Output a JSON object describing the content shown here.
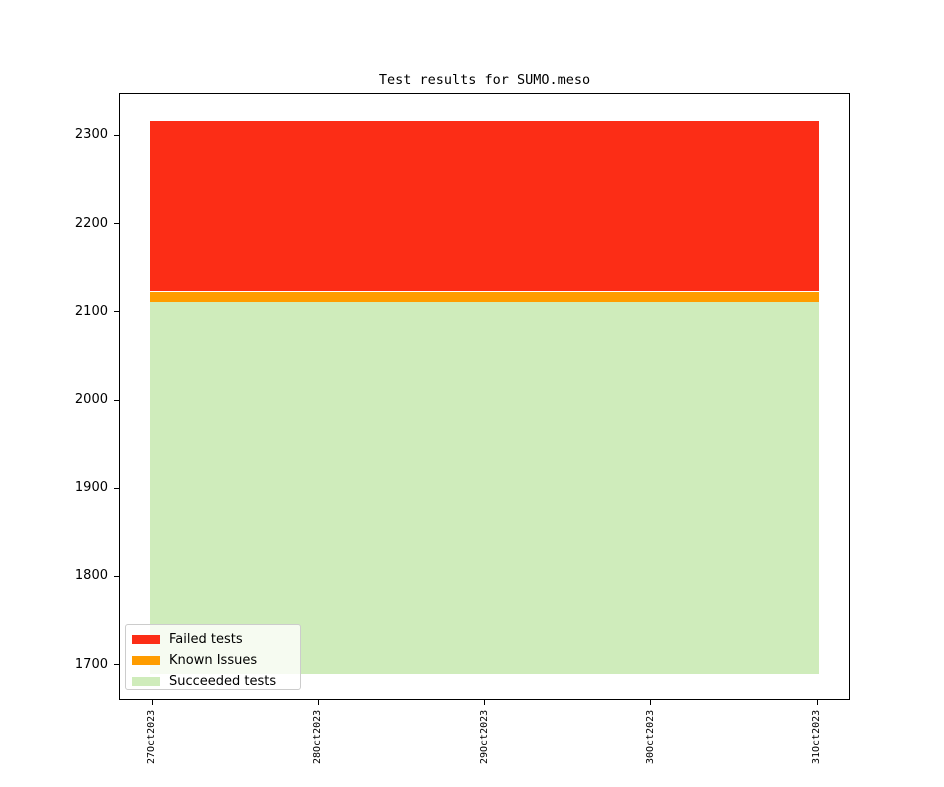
{
  "chart_data": {
    "type": "area",
    "stacked": true,
    "title": "Test results for SUMO.meso",
    "categories": [
      "27Oct2023",
      "28Oct2023",
      "29Oct2023",
      "30Oct2023",
      "31Oct2023"
    ],
    "series": [
      {
        "name": "Failed tests",
        "color": "#fc2d16",
        "values": [
          193,
          193,
          193,
          193,
          193
        ],
        "stack_band": [
          2123,
          2316
        ]
      },
      {
        "name": "Known Issues",
        "color": "#ff9c00",
        "values": [
          12,
          12,
          12,
          12,
          12
        ],
        "stack_band": [
          2111,
          2123
        ]
      },
      {
        "name": "Succeeded tests",
        "color": "#cfecbb",
        "values": [
          2111,
          2111,
          2111,
          2111,
          2111
        ],
        "stack_band": [
          1689,
          2111
        ]
      }
    ],
    "cumulative_top": 2316,
    "area_baseline": 1689,
    "ylim": [
      1660,
      2348
    ],
    "yticks": [
      1700,
      1800,
      1900,
      2000,
      2100,
      2200,
      2300
    ],
    "xlabel": "",
    "ylabel": "",
    "grid": false,
    "x_tick_rotation": 90,
    "legend_position": "lower left",
    "legend_items": [
      "Failed tests",
      "Known Issues",
      "Succeeded tests"
    ]
  }
}
